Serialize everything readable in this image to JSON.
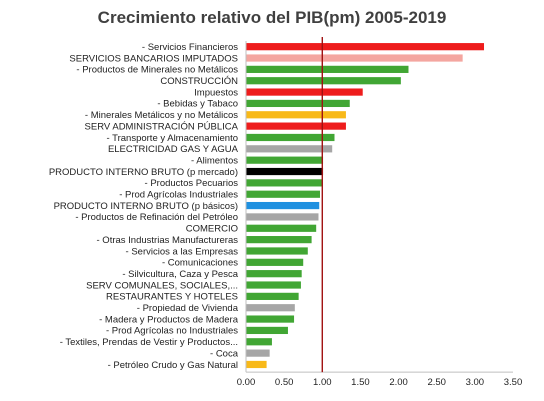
{
  "chart_data": {
    "type": "bar",
    "orientation": "horizontal",
    "title": "Crecimiento relativo del PIB(pm) 2005-2019",
    "xlabel": "",
    "ylabel": "",
    "xlim": [
      0,
      3.5
    ],
    "ticks": [
      "0.00",
      "0.50",
      "1.00",
      "1.50",
      "2.00",
      "2.50",
      "3.00",
      "3.50"
    ],
    "reference_line": 1.0,
    "reference_color": "#a01010",
    "grid": false,
    "legend": "none",
    "categories": [
      "- Servicios Financieros",
      "SERVICIOS BANCARIOS IMPUTADOS",
      "- Productos de Minerales no Metálicos",
      "CONSTRUCCIÓN",
      "Impuestos",
      "- Bebidas y Tabaco",
      "- Minerales Metálicos y no Metálicos",
      "SERV ADMINISTRACIÓN PÚBLICA",
      "- Transporte y Almacenamiento",
      "ELECTRICIDAD GAS Y AGUA",
      "- Alimentos",
      "PRODUCTO INTERNO BRUTO (p mercado)",
      "- Productos Pecuarios",
      "- Prod Agrícolas Industriales",
      "PRODUCTO INTERNO BRUTO  (p básicos)",
      "- Productos de Refinación del Petróleo",
      "COMERCIO",
      "- Otras Industrias Manufactureras",
      "- Servicios a las Empresas",
      "- Comunicaciones",
      "- Silvicultura, Caza y Pesca",
      "SERV COMUNALES, SOCIALES,...",
      "RESTAURANTES Y HOTELES",
      "- Propiedad de Vivienda",
      "- Madera y Productos de Madera",
      "- Prod Agrícolas no Industriales",
      "- Textiles, Prendas de Vestir y Productos...",
      "- Coca",
      "- Petróleo Crudo y Gas Natural"
    ],
    "values": [
      3.12,
      2.84,
      2.13,
      2.03,
      1.53,
      1.36,
      1.31,
      1.31,
      1.16,
      1.13,
      1.01,
      1.01,
      1.0,
      0.97,
      0.96,
      0.95,
      0.92,
      0.86,
      0.81,
      0.75,
      0.73,
      0.72,
      0.69,
      0.64,
      0.63,
      0.55,
      0.34,
      0.31,
      0.27
    ],
    "colors": [
      "#ee1c1c",
      "#f4a6a0",
      "#41a634",
      "#41a634",
      "#ee1c1c",
      "#41a634",
      "#f8b919",
      "#ee1c1c",
      "#41a634",
      "#a6a6a6",
      "#41a634",
      "#000000",
      "#41a634",
      "#41a634",
      "#1e90e0",
      "#a6a6a6",
      "#41a634",
      "#41a634",
      "#41a634",
      "#41a634",
      "#41a634",
      "#41a634",
      "#41a634",
      "#a6a6a6",
      "#41a634",
      "#41a634",
      "#41a634",
      "#a6a6a6",
      "#f8b919"
    ]
  }
}
